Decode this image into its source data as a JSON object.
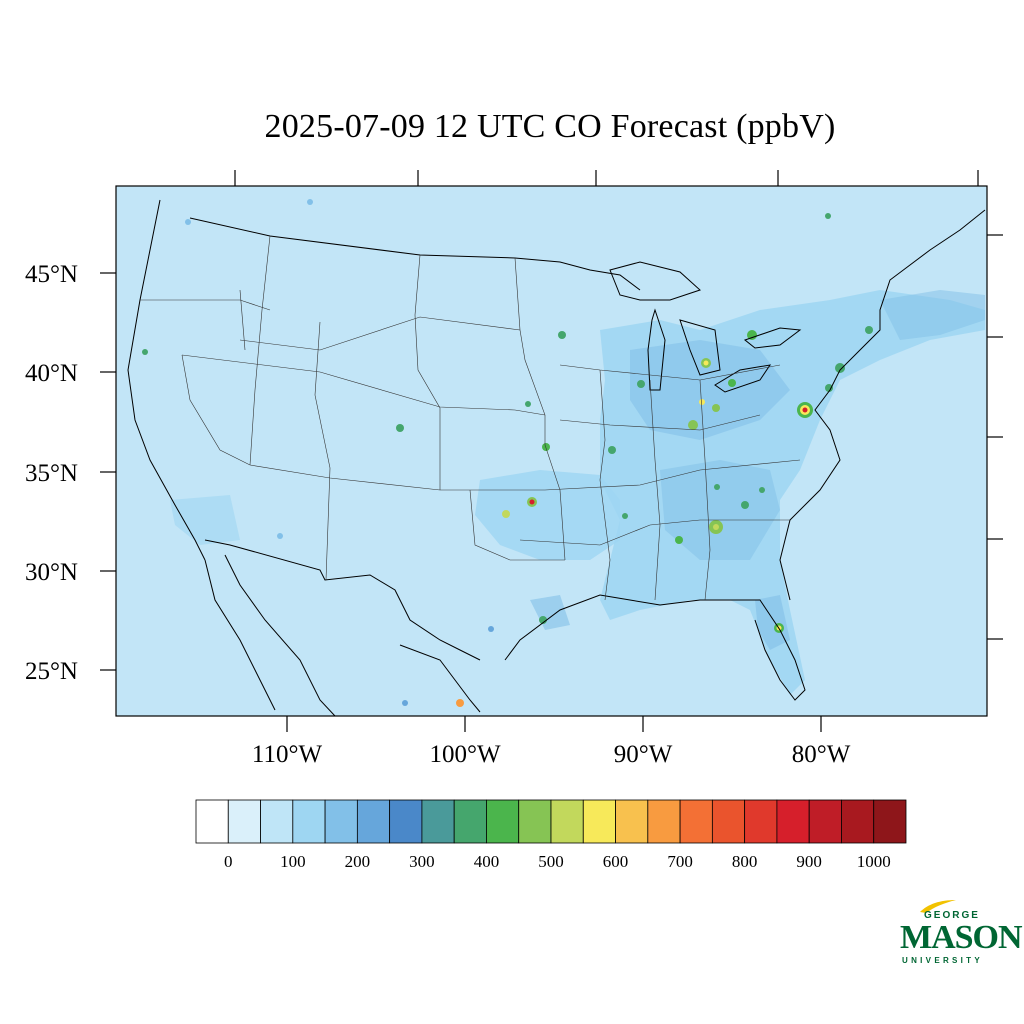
{
  "title": "2025-07-09 12 UTC CO Forecast (ppbV)",
  "lat_labels": [
    "45°N",
    "40°N",
    "35°N",
    "30°N",
    "25°N"
  ],
  "lon_labels": [
    "110°W",
    "100°W",
    "90°W",
    "80°W"
  ],
  "colorbar": {
    "colors": [
      "#ffffff",
      "#daf0fa",
      "#bfe5f7",
      "#9ed6f2",
      "#82c0e8",
      "#66a6db",
      "#4a88c9",
      "#4a9a9a",
      "#45a66d",
      "#4bb54c",
      "#86c454",
      "#c2d85c",
      "#f7e95a",
      "#f8c14e",
      "#f89b40",
      "#f37035",
      "#ea542d",
      "#e0392c",
      "#d61f2b",
      "#bf1d27",
      "#a8191f",
      "#8e161a"
    ],
    "labels": [
      "0",
      "100",
      "200",
      "300",
      "400",
      "500",
      "600",
      "700",
      "800",
      "900",
      "1000"
    ]
  },
  "background_color": "#c2e5f7",
  "logo": {
    "line1": "GEORGE",
    "line2": "MASON",
    "line3": "UNIVERSITY",
    "color": "#006633"
  }
}
